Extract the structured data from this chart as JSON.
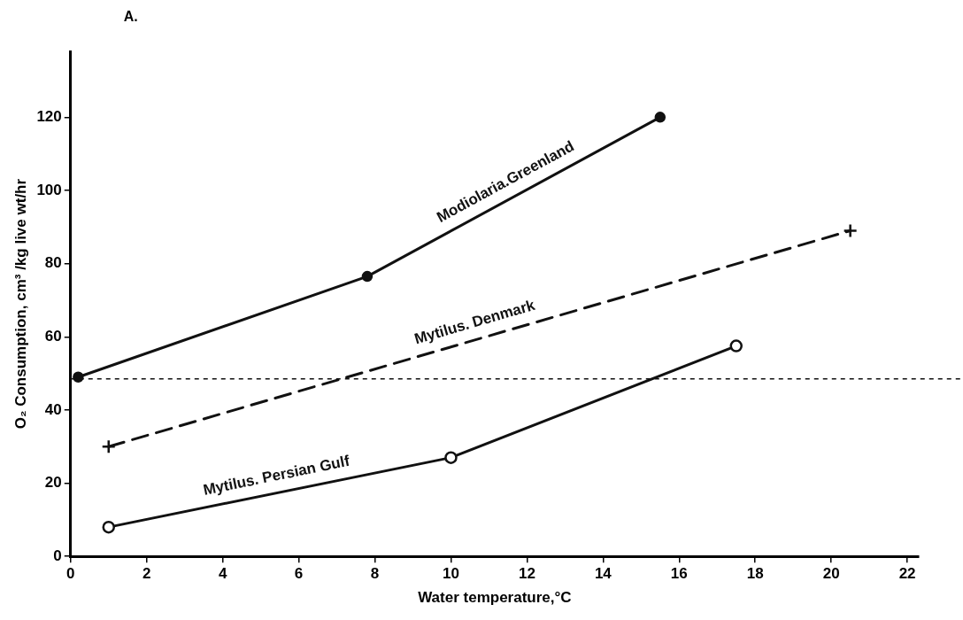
{
  "chart_data": {
    "type": "line",
    "xlabel": "Water temperature,°C",
    "ylabel": "O₂ Consumption, cm³ /kg live wt/hr",
    "xlim": [
      0,
      22.3
    ],
    "xticks": [
      0,
      2,
      4,
      6,
      8,
      10,
      12,
      14,
      16,
      18,
      20,
      22
    ],
    "ylim": [
      0,
      138
    ],
    "yticks": [
      0,
      20,
      40,
      60,
      80,
      100,
      120
    ],
    "grid": false,
    "legend": false,
    "series": [
      {
        "name": "Modiolaria.Greenland",
        "color": "#111111",
        "x": [
          0.2,
          7.8,
          15.5
        ],
        "values": [
          49,
          76.5,
          120
        ],
        "marker": "circle",
        "line_style": "solid"
      },
      {
        "name": "Mytilus. Denmark",
        "color": "#111111",
        "x": [
          1,
          20.5
        ],
        "values": [
          30,
          89
        ],
        "marker": "cross",
        "line_style": "dashed"
      },
      {
        "name": "Mytilus. Persian Gulf",
        "color": "#111111",
        "x": [
          1,
          10,
          17.5
        ],
        "values": [
          8,
          27,
          57.5
        ],
        "marker": "open circle",
        "line_style": "solid"
      }
    ],
    "ref_lines": [
      {
        "axis": "y",
        "value": 48.5,
        "line_style": "dotted",
        "color": "#111111"
      }
    ],
    "annotations": [
      "A."
    ]
  }
}
